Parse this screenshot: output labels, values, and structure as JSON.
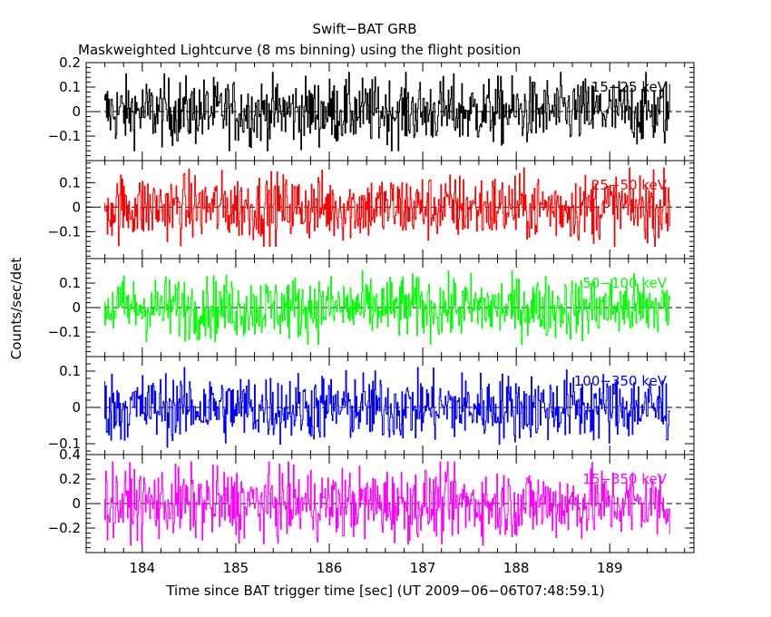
{
  "chart_data": {
    "type": "line",
    "title": "Swift−BAT GRB",
    "subtitle": "Maskweighted Lightcurve (8 ms binning) using the flight position",
    "xlabel": "Time since BAT trigger time [sec] (UT 2009−06−06T07:48:59.1)",
    "ylabel": "Counts/sec/det",
    "xlim": [
      183.4,
      189.9
    ],
    "x_ticks": [
      184,
      185,
      186,
      187,
      188,
      189
    ],
    "x_tick_labels": [
      "184",
      "185",
      "186",
      "187",
      "188",
      "189"
    ],
    "data_x_range": [
      183.6,
      189.65
    ],
    "binning_sec": 0.008,
    "zero_line": true,
    "panels": [
      {
        "name": "15−25 keV",
        "color": "#000000",
        "ylim": [
          -0.2,
          0.2
        ],
        "yticks": [
          0.2,
          0.1,
          0,
          -0.1
        ],
        "ytick_labels": [
          "0.2",
          "0.1",
          "0",
          "−0.1"
        ],
        "amplitude": 0.16
      },
      {
        "name": "25−50 keV",
        "color": "#ff0000",
        "ylim": [
          -0.21,
          0.19
        ],
        "yticks": [
          0.1,
          0,
          -0.1
        ],
        "ytick_labels": [
          "0.1",
          "0",
          "−0.1"
        ],
        "amplitude": 0.16
      },
      {
        "name": "50−100 keV",
        "color": "#00ff00",
        "ylim": [
          -0.2,
          0.2
        ],
        "yticks": [
          0.1,
          0,
          -0.1
        ],
        "ytick_labels": [
          "0.1",
          "0",
          "−0.1"
        ],
        "amplitude": 0.15
      },
      {
        "name": "100−350 keV",
        "color": "#0000ff",
        "ylim": [
          -0.13,
          0.14
        ],
        "yticks": [
          0.1,
          0,
          -0.1
        ],
        "ytick_labels": [
          "0.1",
          "0",
          "−0.1"
        ],
        "amplitude": 0.11
      },
      {
        "name": "15−350 keV",
        "color": "#ff00ff",
        "ylim": [
          -0.4,
          0.4
        ],
        "yticks": [
          0.4,
          0.2,
          0,
          -0.2
        ],
        "ytick_labels": [
          "0.4",
          "0.2",
          "0",
          "−0.2"
        ],
        "amplitude": 0.34
      }
    ]
  }
}
